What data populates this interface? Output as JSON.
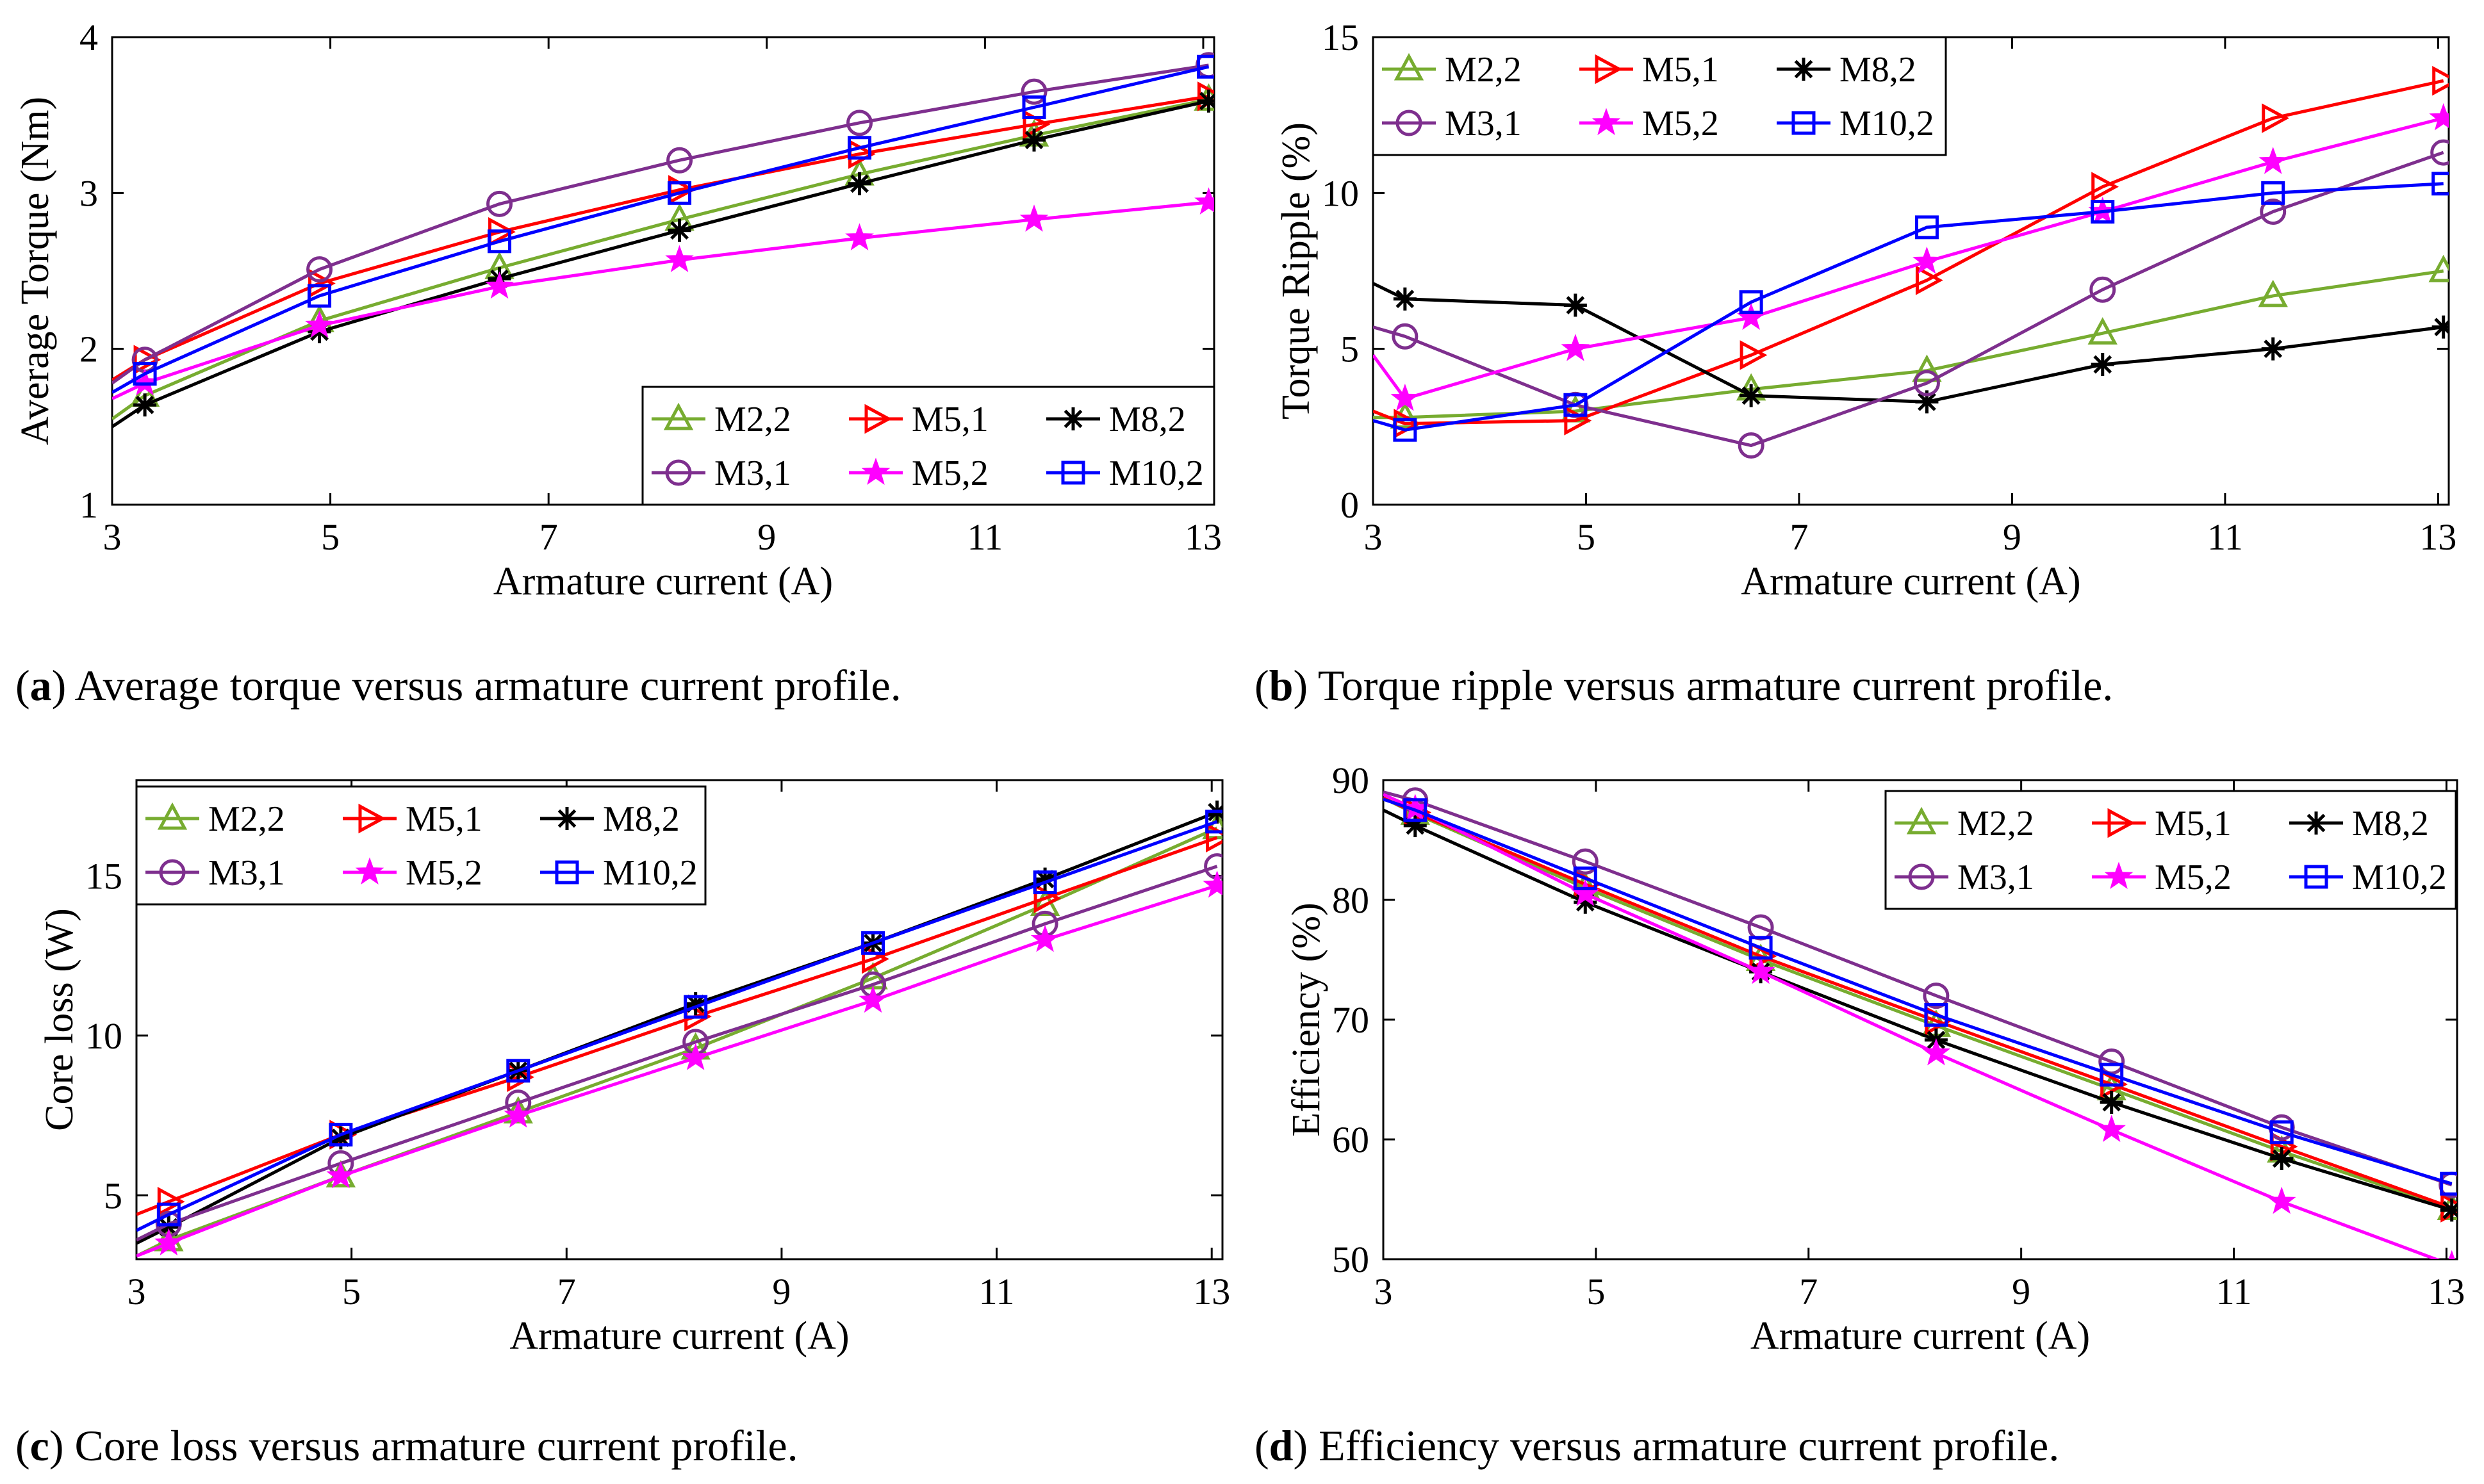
{
  "chart_data": [
    {
      "id": "a",
      "type": "line",
      "xlabel": "Armature current (A)",
      "ylabel": "Average Torque (Nm)",
      "xlim": [
        3,
        13.1
      ],
      "ylim": [
        1,
        4
      ],
      "xticks": [
        3,
        5,
        7,
        9,
        11,
        13
      ],
      "yticks": [
        1,
        2,
        3,
        4
      ],
      "legend_position": "lower-right",
      "caption_label": "(a)",
      "caption_text": "Average torque versus armature current profile.",
      "x_markers": [
        3.3,
        4.9,
        6.55,
        8.2,
        9.85,
        11.45,
        13.05
      ],
      "series": [
        {
          "name": "M2,2",
          "color": "#77ac30",
          "marker": "triangle",
          "start": [
            3,
            1.55
          ],
          "values": [
            1.7,
            2.18,
            2.52,
            2.83,
            3.12,
            3.37,
            3.6
          ]
        },
        {
          "name": "M5,1",
          "color": "#ff0000",
          "marker": "triangle-right",
          "start": [
            3,
            1.8
          ],
          "values": [
            1.93,
            2.42,
            2.75,
            3.02,
            3.25,
            3.44,
            3.62
          ]
        },
        {
          "name": "M8,2",
          "color": "#000000",
          "marker": "asterisk",
          "start": [
            3,
            1.5
          ],
          "values": [
            1.64,
            2.11,
            2.45,
            2.76,
            3.06,
            3.34,
            3.59
          ]
        },
        {
          "name": "M3,1",
          "color": "#7e2f8e",
          "marker": "circle",
          "start": [
            3,
            1.78
          ],
          "values": [
            1.93,
            2.51,
            2.93,
            3.21,
            3.45,
            3.65,
            3.82
          ]
        },
        {
          "name": "M5,2",
          "color": "#ff00ff",
          "marker": "star",
          "start": [
            3,
            1.68
          ],
          "values": [
            1.78,
            2.15,
            2.4,
            2.57,
            2.71,
            2.83,
            2.94
          ]
        },
        {
          "name": "M10,2",
          "color": "#0000ff",
          "marker": "square",
          "start": [
            3,
            1.72
          ],
          "values": [
            1.84,
            2.34,
            2.69,
            3.0,
            3.29,
            3.55,
            3.81
          ]
        }
      ]
    },
    {
      "id": "b",
      "type": "line",
      "xlabel": "Armature current (A)",
      "ylabel": "Torque Ripple (%)",
      "xlim": [
        3,
        13.1
      ],
      "ylim": [
        0,
        15
      ],
      "xticks": [
        3,
        5,
        7,
        9,
        11,
        13
      ],
      "yticks": [
        0,
        5,
        10,
        15
      ],
      "legend_position": "top-left",
      "caption_label": "(b)",
      "caption_text": "Torque ripple versus armature current profile.",
      "x_markers": [
        3.3,
        4.9,
        6.55,
        8.2,
        9.85,
        11.45,
        13.05
      ],
      "series": [
        {
          "name": "M2,2",
          "color": "#77ac30",
          "marker": "triangle",
          "start": [
            3,
            2.8
          ],
          "values": [
            2.8,
            3.0,
            3.7,
            4.3,
            5.5,
            6.7,
            7.5
          ]
        },
        {
          "name": "M5,1",
          "color": "#ff0000",
          "marker": "triangle-right",
          "start": [
            3,
            3.0
          ],
          "values": [
            2.6,
            2.7,
            4.8,
            7.2,
            10.2,
            12.4,
            13.6
          ]
        },
        {
          "name": "M8,2",
          "color": "#000000",
          "marker": "asterisk",
          "start": [
            3,
            7.1
          ],
          "values": [
            6.6,
            6.4,
            3.5,
            3.3,
            4.5,
            5.0,
            5.7
          ]
        },
        {
          "name": "M3,1",
          "color": "#7e2f8e",
          "marker": "circle",
          "start": [
            3,
            5.7
          ],
          "values": [
            5.4,
            3.2,
            1.9,
            3.9,
            6.9,
            9.4,
            11.3
          ]
        },
        {
          "name": "M5,2",
          "color": "#ff00ff",
          "marker": "star",
          "start": [
            3,
            4.8
          ],
          "values": [
            3.4,
            5.0,
            6.0,
            7.8,
            9.4,
            11.0,
            12.4
          ]
        },
        {
          "name": "M10,2",
          "color": "#0000ff",
          "marker": "square",
          "start": [
            3,
            2.7
          ],
          "values": [
            2.4,
            3.2,
            6.5,
            8.9,
            9.4,
            10.0,
            10.3
          ]
        }
      ]
    },
    {
      "id": "c",
      "type": "line",
      "xlabel": "Armature current (A)",
      "ylabel": "Core loss (W)",
      "xlim": [
        3,
        13.1
      ],
      "ylim": [
        3,
        18
      ],
      "xticks": [
        3,
        5,
        7,
        9,
        11,
        13
      ],
      "yticks": [
        5,
        10,
        15
      ],
      "legend_position": "top-left",
      "caption_label": "(c)",
      "caption_text": "Core loss versus armature current profile.",
      "x_markers": [
        3.3,
        4.9,
        6.55,
        8.2,
        9.85,
        11.45,
        13.05
      ],
      "series": [
        {
          "name": "M2,2",
          "color": "#77ac30",
          "marker": "triangle",
          "start": [
            3,
            3.1
          ],
          "values": [
            3.6,
            5.6,
            7.6,
            9.6,
            11.8,
            14.1,
            16.5
          ]
        },
        {
          "name": "M5,1",
          "color": "#ff0000",
          "marker": "triangle-right",
          "start": [
            3,
            4.4
          ],
          "values": [
            4.8,
            6.9,
            8.7,
            10.6,
            12.4,
            14.3,
            16.2
          ]
        },
        {
          "name": "M8,2",
          "color": "#000000",
          "marker": "asterisk",
          "start": [
            3,
            3.5
          ],
          "values": [
            4.0,
            6.8,
            8.9,
            11.0,
            12.9,
            14.9,
            17.0
          ]
        },
        {
          "name": "M3,1",
          "color": "#7e2f8e",
          "marker": "circle",
          "start": [
            3,
            3.6
          ],
          "values": [
            4.1,
            6.0,
            7.9,
            9.8,
            11.6,
            13.5,
            15.3
          ]
        },
        {
          "name": "M5,2",
          "color": "#ff00ff",
          "marker": "star",
          "start": [
            3,
            3.1
          ],
          "values": [
            3.5,
            5.6,
            7.5,
            9.3,
            11.1,
            13.0,
            14.7
          ]
        },
        {
          "name": "M10,2",
          "color": "#0000ff",
          "marker": "square",
          "start": [
            3,
            3.9
          ],
          "values": [
            4.4,
            6.9,
            8.9,
            10.9,
            12.9,
            14.8,
            16.7
          ]
        }
      ]
    },
    {
      "id": "d",
      "type": "line",
      "xlabel": "Armature current (A)",
      "ylabel": "Efficiency (%)",
      "xlim": [
        3,
        13.1
      ],
      "ylim": [
        50,
        90
      ],
      "xticks": [
        3,
        5,
        7,
        9,
        11,
        13
      ],
      "yticks": [
        50,
        60,
        70,
        80,
        90
      ],
      "legend_position": "top-right",
      "caption_label": "(d)",
      "caption_text": "Efficiency versus armature current profile.",
      "x_markers": [
        3.3,
        4.9,
        6.55,
        8.2,
        9.85,
        11.45,
        13.05
      ],
      "series": [
        {
          "name": "M2,2",
          "color": "#77ac30",
          "marker": "triangle",
          "start": [
            3,
            88.5
          ],
          "values": [
            87.2,
            81.0,
            75.0,
            69.5,
            64.2,
            59.0,
            54.2
          ]
        },
        {
          "name": "M5,1",
          "color": "#ff0000",
          "marker": "triangle-right",
          "start": [
            3,
            88.5
          ],
          "values": [
            87.3,
            81.3,
            75.3,
            69.9,
            64.6,
            59.4,
            54.3
          ]
        },
        {
          "name": "M8,2",
          "color": "#000000",
          "marker": "asterisk",
          "start": [
            3,
            87.5
          ],
          "values": [
            86.2,
            79.8,
            74.0,
            68.3,
            63.1,
            58.4,
            54.1
          ]
        },
        {
          "name": "M3,1",
          "color": "#7e2f8e",
          "marker": "circle",
          "start": [
            3,
            89.0
          ],
          "values": [
            88.3,
            83.2,
            77.7,
            72.0,
            66.5,
            61.0,
            56.2
          ]
        },
        {
          "name": "M5,2",
          "color": "#ff00ff",
          "marker": "star",
          "start": [
            3,
            88.8
          ],
          "values": [
            87.6,
            80.5,
            74.0,
            67.2,
            60.8,
            54.8,
            49.5
          ]
        },
        {
          "name": "M10,2",
          "color": "#0000ff",
          "marker": "square",
          "start": [
            3,
            88.4
          ],
          "values": [
            87.5,
            81.8,
            76.0,
            70.4,
            65.4,
            60.6,
            56.3
          ]
        }
      ]
    }
  ]
}
